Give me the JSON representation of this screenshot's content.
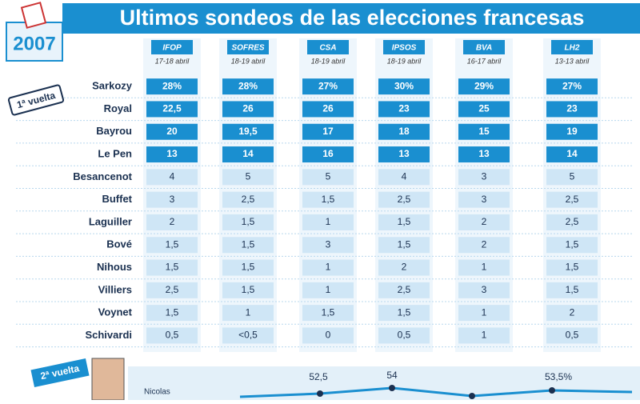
{
  "header": {
    "title": "Ultimos sondeos de las elecciones francesas",
    "logo": "2007"
  },
  "round_labels": {
    "first": "1ª vuelta",
    "second": "2ª vuelta"
  },
  "table": {
    "pollsters": [
      {
        "name": "IFOP",
        "date": "17-18 abril"
      },
      {
        "name": "SOFRES",
        "date": "18-19 abril"
      },
      {
        "name": "CSA",
        "date": "18-19 abril"
      },
      {
        "name": "IPSOS",
        "date": "18-19 abril"
      },
      {
        "name": "BVA",
        "date": "16-17 abril"
      },
      {
        "name": "LH2",
        "date": "13-13 abril"
      }
    ],
    "rows": [
      {
        "candidate": "Sarkozy",
        "values": [
          "28%",
          "28%",
          "27%",
          "30%",
          "29%",
          "27%"
        ]
      },
      {
        "candidate": "Royal",
        "values": [
          "22,5",
          "26",
          "26",
          "23",
          "25",
          "23"
        ]
      },
      {
        "candidate": "Bayrou",
        "values": [
          "20",
          "19,5",
          "17",
          "18",
          "15",
          "19"
        ]
      },
      {
        "candidate": "Le Pen",
        "values": [
          "13",
          "14",
          "16",
          "13",
          "13",
          "14"
        ]
      },
      {
        "candidate": "Besancenot",
        "values": [
          "4",
          "5",
          "5",
          "4",
          "3",
          "5"
        ]
      },
      {
        "candidate": "Buffet",
        "values": [
          "3",
          "2,5",
          "1,5",
          "2,5",
          "3",
          "2,5"
        ]
      },
      {
        "candidate": "Laguiller",
        "values": [
          "2",
          "1,5",
          "1",
          "1,5",
          "2",
          "2,5"
        ]
      },
      {
        "candidate": "Bové",
        "values": [
          "1,5",
          "1,5",
          "3",
          "1,5",
          "2",
          "1,5"
        ]
      },
      {
        "candidate": "Nihous",
        "values": [
          "1,5",
          "1,5",
          "1",
          "2",
          "1",
          "1,5"
        ]
      },
      {
        "candidate": "Villiers",
        "values": [
          "2,5",
          "1,5",
          "1",
          "2,5",
          "3",
          "1,5"
        ]
      },
      {
        "candidate": "Voynet",
        "values": [
          "1,5",
          "1",
          "1,5",
          "1,5",
          "1",
          "2"
        ]
      },
      {
        "candidate": "Schivardi",
        "values": [
          "0,5",
          "<0,5",
          "0",
          "0,5",
          "1",
          "0,5"
        ]
      }
    ]
  },
  "second_round": {
    "candidate": "Nicolas",
    "labels": [
      "52,5",
      "54",
      "53,5%"
    ]
  }
}
